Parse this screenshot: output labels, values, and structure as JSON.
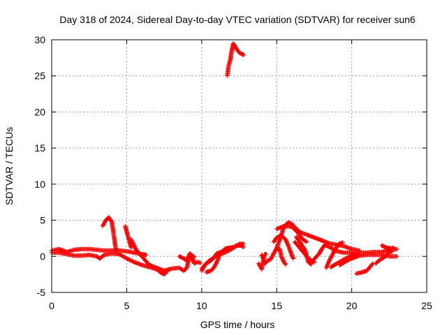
{
  "chart_data": {
    "type": "scatter",
    "title": "Day 318 of 2024, Sidereal Day-to-day VTEC variation (SDTVAR) for receiver sun6",
    "xlabel": "GPS time / hours",
    "ylabel": "SDTVAR / TECUs",
    "xlim": [
      0,
      25
    ],
    "ylim": [
      -5,
      30
    ],
    "xticks": [
      0,
      5,
      10,
      15,
      20,
      25
    ],
    "yticks": [
      -5,
      0,
      5,
      10,
      15,
      20,
      25,
      30
    ],
    "grid": true,
    "marker": "+",
    "series": [
      {
        "name": "SDTVAR",
        "color": "#ff0000",
        "segments": [
          [
            [
              0.0,
              0.8
            ],
            [
              0.5,
              1.0
            ],
            [
              1.0,
              0.6
            ],
            [
              1.5,
              0.9
            ],
            [
              2.0,
              1.0
            ],
            [
              2.5,
              1.0
            ],
            [
              3.0,
              0.9
            ],
            [
              3.5,
              0.8
            ],
            [
              4.0,
              0.8
            ],
            [
              4.5,
              0.8
            ],
            [
              5.0,
              0.7
            ],
            [
              5.5,
              0.5
            ],
            [
              6.0,
              0.3
            ],
            [
              6.3,
              0.2
            ]
          ],
          [
            [
              0.0,
              0.5
            ],
            [
              0.5,
              0.5
            ],
            [
              1.0,
              0.3
            ],
            [
              1.5,
              0.1
            ],
            [
              2.0,
              0.1
            ],
            [
              2.5,
              0.2
            ],
            [
              3.0,
              0.0
            ],
            [
              3.2,
              -0.3
            ],
            [
              3.5,
              0.2
            ],
            [
              4.0,
              0.4
            ],
            [
              4.5,
              0.3
            ],
            [
              5.0,
              -0.3
            ],
            [
              5.5,
              -0.8
            ],
            [
              6.0,
              -1.2
            ],
            [
              6.5,
              -1.5
            ],
            [
              7.0,
              -1.8
            ],
            [
              7.3,
              -2.3
            ],
            [
              7.5,
              -2.5
            ],
            [
              7.8,
              -1.8
            ]
          ],
          [
            [
              3.4,
              4.2
            ],
            [
              3.6,
              5.0
            ],
            [
              3.8,
              5.4
            ],
            [
              4.0,
              4.8
            ],
            [
              4.1,
              3.5
            ],
            [
              4.2,
              2.0
            ],
            [
              4.3,
              0.6
            ]
          ],
          [
            [
              4.9,
              4.2
            ],
            [
              5.0,
              3.4
            ],
            [
              5.2,
              1.9
            ],
            [
              5.3,
              1.2
            ]
          ],
          [
            [
              5.3,
              2.3
            ],
            [
              5.6,
              1.0
            ],
            [
              6.0,
              0.0
            ],
            [
              6.5,
              -1.2
            ],
            [
              7.0,
              -1.6
            ],
            [
              7.5,
              -2.0
            ],
            [
              8.0,
              -1.7
            ],
            [
              8.5,
              -1.6
            ],
            [
              8.8,
              -2.0
            ],
            [
              9.0,
              -1.6
            ],
            [
              9.2,
              0.1
            ],
            [
              9.4,
              -0.4
            ],
            [
              9.5,
              -1.0
            ],
            [
              9.7,
              -0.8
            ],
            [
              9.9,
              -0.9
            ]
          ],
          [
            [
              8.5,
              0.0
            ],
            [
              8.8,
              -0.3
            ],
            [
              9.0,
              -0.6
            ],
            [
              9.2,
              0.4
            ],
            [
              9.5,
              -0.1
            ]
          ],
          [
            [
              10.0,
              -1.7
            ],
            [
              10.3,
              -1.0
            ],
            [
              10.6,
              -0.6
            ],
            [
              10.9,
              0.0
            ],
            [
              11.2,
              0.3
            ],
            [
              11.5,
              0.5
            ],
            [
              11.8,
              0.8
            ],
            [
              12.0,
              1.0
            ],
            [
              12.3,
              1.5
            ],
            [
              12.6,
              1.5
            ],
            [
              12.8,
              1.3
            ]
          ],
          [
            [
              10.0,
              -2.0
            ],
            [
              10.2,
              -1.2
            ],
            [
              10.5,
              -0.6
            ],
            [
              10.8,
              -0.2
            ],
            [
              11.0,
              0.4
            ],
            [
              11.3,
              0.6
            ],
            [
              11.6,
              1.1
            ],
            [
              11.9,
              1.2
            ],
            [
              12.2,
              1.3
            ],
            [
              12.5,
              1.7
            ],
            [
              12.8,
              1.7
            ]
          ],
          [
            [
              10.3,
              -2.2
            ],
            [
              10.6,
              -2.0
            ],
            [
              10.8,
              -1.6
            ],
            [
              11.0,
              -0.8
            ],
            [
              11.2,
              0.2
            ]
          ],
          [
            [
              11.7,
              25.0
            ],
            [
              11.8,
              26.5
            ],
            [
              11.9,
              27.2
            ],
            [
              12.0,
              28.5
            ],
            [
              12.1,
              29.5
            ],
            [
              12.3,
              28.8
            ],
            [
              12.5,
              28.2
            ],
            [
              12.8,
              27.9
            ]
          ],
          [
            [
              13.8,
              -1.0
            ],
            [
              14.0,
              -1.8
            ],
            [
              14.1,
              -0.6
            ],
            [
              14.2,
              0.3
            ],
            [
              14.3,
              0.3
            ]
          ],
          [
            [
              14.0,
              0.2
            ],
            [
              14.1,
              -0.3
            ],
            [
              14.2,
              -1.0
            ],
            [
              14.4,
              -0.6
            ],
            [
              14.6,
              -0.4
            ],
            [
              14.8,
              0.4
            ],
            [
              15.0,
              1.2
            ],
            [
              15.2,
              2.3
            ],
            [
              15.4,
              3.6
            ],
            [
              15.6,
              4.4
            ],
            [
              15.8,
              4.7
            ],
            [
              16.0,
              4.5
            ],
            [
              16.3,
              3.8
            ],
            [
              16.6,
              3.3
            ],
            [
              17.0,
              3.0
            ],
            [
              17.5,
              2.6
            ],
            [
              18.0,
              2.2
            ],
            [
              18.5,
              1.8
            ],
            [
              19.0,
              1.6
            ],
            [
              19.5,
              1.4
            ],
            [
              20.0,
              1.0
            ],
            [
              20.5,
              0.8
            ]
          ],
          [
            [
              14.8,
              2.0
            ],
            [
              15.0,
              2.6
            ],
            [
              15.3,
              2.9
            ],
            [
              15.6,
              2.3
            ],
            [
              15.8,
              1.3
            ],
            [
              16.0,
              0.2
            ],
            [
              16.1,
              -0.3
            ]
          ],
          [
            [
              15.0,
              1.0
            ],
            [
              15.2,
              1.0
            ],
            [
              15.3,
              0.0
            ],
            [
              15.5,
              -0.9
            ],
            [
              15.6,
              -1.1
            ]
          ],
          [
            [
              15.0,
              3.8
            ],
            [
              15.5,
              4.2
            ],
            [
              16.0,
              4.1
            ],
            [
              16.4,
              3.3
            ],
            [
              16.7,
              2.4
            ],
            [
              17.0,
              2.0
            ]
          ],
          [
            [
              16.2,
              2.0
            ],
            [
              16.6,
              1.0
            ],
            [
              17.0,
              0.0
            ],
            [
              17.3,
              -0.6
            ],
            [
              17.5,
              -0.8
            ]
          ],
          [
            [
              16.3,
              2.7
            ],
            [
              16.6,
              1.8
            ],
            [
              16.9,
              0.8
            ],
            [
              17.1,
              -0.8
            ],
            [
              17.3,
              -1.1
            ]
          ],
          [
            [
              17.4,
              -0.6
            ],
            [
              17.8,
              0.3
            ],
            [
              18.0,
              1.0
            ],
            [
              18.2,
              1.6
            ],
            [
              18.5,
              1.3
            ],
            [
              19.0,
              0.7
            ],
            [
              19.5,
              0.5
            ],
            [
              20.0,
              0.5
            ],
            [
              20.5,
              0.1
            ],
            [
              21.0,
              0.2
            ],
            [
              21.5,
              0.2
            ],
            [
              22.0,
              0.2
            ],
            [
              22.5,
              0.0
            ],
            [
              23.0,
              0.0
            ]
          ],
          [
            [
              18.3,
              -1.6
            ],
            [
              18.5,
              -0.6
            ],
            [
              18.8,
              0.6
            ],
            [
              19.0,
              1.3
            ],
            [
              19.2,
              1.8
            ],
            [
              19.4,
              1.9
            ]
          ],
          [
            [
              18.6,
              -1.5
            ],
            [
              19.0,
              -1.0
            ],
            [
              19.5,
              -0.4
            ],
            [
              20.0,
              0.1
            ],
            [
              20.5,
              0.5
            ],
            [
              21.0,
              0.5
            ],
            [
              21.5,
              0.6
            ],
            [
              22.0,
              0.6
            ],
            [
              22.5,
              0.9
            ],
            [
              23.0,
              1.0
            ]
          ],
          [
            [
              19.2,
              -1.2
            ],
            [
              19.6,
              -0.7
            ],
            [
              20.0,
              -0.3
            ],
            [
              20.4,
              0.0
            ]
          ],
          [
            [
              20.3,
              -2.4
            ],
            [
              20.7,
              -2.2
            ],
            [
              21.0,
              -2.0
            ],
            [
              21.2,
              -1.5
            ],
            [
              21.4,
              -1.0
            ]
          ],
          [
            [
              21.6,
              -1.0
            ],
            [
              21.8,
              -0.6
            ],
            [
              22.1,
              -0.2
            ],
            [
              22.3,
              0.1
            ],
            [
              22.5,
              0.6
            ],
            [
              22.7,
              0.7
            ]
          ],
          [
            [
              22.0,
              1.5
            ],
            [
              22.3,
              1.2
            ],
            [
              22.6,
              1.1
            ],
            [
              22.8,
              1.2
            ]
          ]
        ]
      }
    ]
  }
}
